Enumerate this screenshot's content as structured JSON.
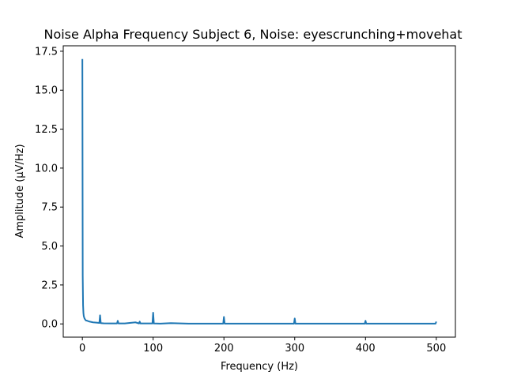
{
  "chart_data": {
    "type": "line",
    "title": "Noise Alpha Frequency Subject 6, Noise: eyescrunching+movehat",
    "xlabel": "Frequency (Hz)",
    "ylabel": "Amplitude (µV/Hz)",
    "xlim": [
      -27,
      527
    ],
    "ylim": [
      -0.85,
      17.85
    ],
    "xticks": [
      0,
      100,
      200,
      300,
      400,
      500
    ],
    "xtick_labels": [
      "0",
      "100",
      "200",
      "300",
      "400",
      "500"
    ],
    "yticks": [
      0.0,
      2.5,
      5.0,
      7.5,
      10.0,
      12.5,
      15.0,
      17.5
    ],
    "ytick_labels": [
      "0.0",
      "2.5",
      "5.0",
      "7.5",
      "10.0",
      "12.5",
      "15.0",
      "17.5"
    ],
    "grid": false,
    "line_color": "#1f77b4",
    "series": [
      {
        "x": [
          0,
          0.5,
          1,
          1.5,
          2,
          3,
          4,
          5,
          7,
          10,
          15,
          20,
          24,
          25,
          26,
          30,
          40,
          49,
          50,
          51,
          60,
          75,
          80,
          81,
          82,
          90,
          99,
          100,
          101,
          110,
          125,
          150,
          175,
          199,
          200,
          201,
          225,
          250,
          275,
          299,
          300,
          301,
          325,
          350,
          375,
          399,
          400,
          401,
          425,
          450,
          475,
          499,
          500
        ],
        "y": [
          17.0,
          3.1,
          1.2,
          0.7,
          0.5,
          0.35,
          0.28,
          0.22,
          0.2,
          0.15,
          0.1,
          0.08,
          0.06,
          0.55,
          0.05,
          0.04,
          0.03,
          0.03,
          0.2,
          0.03,
          0.03,
          0.1,
          0.03,
          0.15,
          0.03,
          0.03,
          0.03,
          0.72,
          0.03,
          0.02,
          0.05,
          0.02,
          0.02,
          0.02,
          0.45,
          0.02,
          0.02,
          0.02,
          0.02,
          0.02,
          0.35,
          0.02,
          0.02,
          0.02,
          0.02,
          0.02,
          0.2,
          0.02,
          0.02,
          0.02,
          0.02,
          0.02,
          0.15
        ]
      }
    ]
  }
}
